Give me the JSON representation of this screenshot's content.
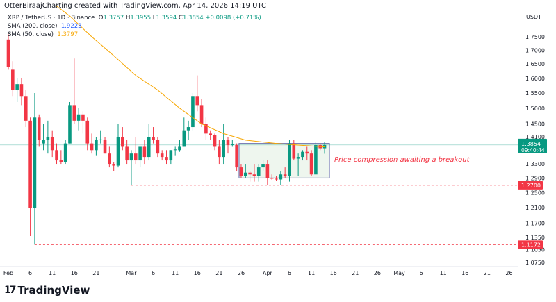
{
  "credit": "OtterBiraajCharting created with TradingView.com, Apr 14, 2026 14:19 UTC",
  "legend": {
    "symbol": "XRP / TetherUS · 1D · Binance",
    "o": "1.3757",
    "h": "1.3955",
    "l": "1.3594",
    "c": "1.3854",
    "change": "+0.0098 (+0.71%)",
    "sma200_label": "SMA (200, close)",
    "sma200_value": "1.9223",
    "sma50_label": "SMA (50, close)",
    "sma50_value": "1.3797"
  },
  "currency": "USDT",
  "logo": "TradingView",
  "annotation": "Price compression awaiting a breakout",
  "colors": {
    "up": "#089981",
    "down": "#f23645",
    "sma50": "#f7a600",
    "sma200": "#2962ff",
    "box_border": "#7b7fb5",
    "box_fill": "#eef6ee",
    "annotation": "#f23645"
  },
  "chart_data": {
    "type": "candlestick",
    "scale": "log",
    "ylim": [
      1.055,
      1.82
    ],
    "yticks": [
      "1.7500",
      "1.7000",
      "1.6500",
      "1.6000",
      "1.5500",
      "1.5000",
      "1.4500",
      "1.4100",
      "1.3300",
      "1.2900",
      "1.2500",
      "1.2100",
      "1.1700",
      "1.1350",
      "1.1050",
      "1.0750"
    ],
    "xticks": [
      [
        "2026-02-01",
        "Feb"
      ],
      [
        "2026-02-06",
        "6"
      ],
      [
        "2026-02-11",
        "11"
      ],
      [
        "2026-02-16",
        "16"
      ],
      [
        "2026-02-21",
        "21"
      ],
      [
        "2026-03-01",
        "Mar"
      ],
      [
        "2026-03-06",
        "6"
      ],
      [
        "2026-03-11",
        "11"
      ],
      [
        "2026-03-16",
        "16"
      ],
      [
        "2026-03-21",
        "21"
      ],
      [
        "2026-03-26",
        "26"
      ],
      [
        "2026-04-01",
        "Apr"
      ],
      [
        "2026-04-06",
        "6"
      ],
      [
        "2026-04-11",
        "11"
      ],
      [
        "2026-04-16",
        "16"
      ],
      [
        "2026-04-21",
        "21"
      ],
      [
        "2026-04-26",
        "26"
      ],
      [
        "2026-05-01",
        "May"
      ],
      [
        "2026-05-06",
        "6"
      ],
      [
        "2026-05-11",
        "11"
      ],
      [
        "2026-05-16",
        "16"
      ],
      [
        "2026-05-21",
        "21"
      ],
      [
        "2026-05-26",
        "26"
      ]
    ],
    "start_date": "2026-02-01",
    "ohlc": [
      [
        1.74,
        1.76,
        1.63,
        1.64
      ],
      [
        1.63,
        1.66,
        1.54,
        1.56
      ],
      [
        1.56,
        1.6,
        1.52,
        1.58
      ],
      [
        1.58,
        1.6,
        1.51,
        1.54
      ],
      [
        1.54,
        1.56,
        1.44,
        1.46
      ],
      [
        1.46,
        1.47,
        1.138,
        1.21
      ],
      [
        1.21,
        1.55,
        1.1172,
        1.47
      ],
      [
        1.47,
        1.48,
        1.38,
        1.4
      ],
      [
        1.39,
        1.45,
        1.37,
        1.4
      ],
      [
        1.4,
        1.46,
        1.36,
        1.41
      ],
      [
        1.41,
        1.43,
        1.35,
        1.37
      ],
      [
        1.37,
        1.39,
        1.33,
        1.34
      ],
      [
        1.34,
        1.37,
        1.33,
        1.335
      ],
      [
        1.335,
        1.4,
        1.33,
        1.39
      ],
      [
        1.39,
        1.52,
        1.39,
        1.51
      ],
      [
        1.51,
        1.67,
        1.45,
        1.46
      ],
      [
        1.46,
        1.5,
        1.43,
        1.48
      ],
      [
        1.48,
        1.49,
        1.42,
        1.46
      ],
      [
        1.46,
        1.47,
        1.37,
        1.39
      ],
      [
        1.39,
        1.42,
        1.36,
        1.37
      ],
      [
        1.37,
        1.41,
        1.355,
        1.4
      ],
      [
        1.4,
        1.43,
        1.39,
        1.402
      ],
      [
        1.4,
        1.41,
        1.36,
        1.36
      ],
      [
        1.36,
        1.38,
        1.32,
        1.33
      ],
      [
        1.33,
        1.335,
        1.31,
        1.325
      ],
      [
        1.325,
        1.45,
        1.32,
        1.41
      ],
      [
        1.41,
        1.44,
        1.37,
        1.38
      ],
      [
        1.38,
        1.4,
        1.33,
        1.34
      ],
      [
        1.34,
        1.37,
        1.27,
        1.36
      ],
      [
        1.36,
        1.41,
        1.33,
        1.34
      ],
      [
        1.34,
        1.38,
        1.32,
        1.38
      ],
      [
        1.38,
        1.4,
        1.33,
        1.35
      ],
      [
        1.35,
        1.45,
        1.34,
        1.41
      ],
      [
        1.41,
        1.44,
        1.39,
        1.4
      ],
      [
        1.4,
        1.41,
        1.35,
        1.36
      ],
      [
        1.36,
        1.37,
        1.34,
        1.35
      ],
      [
        1.35,
        1.37,
        1.33,
        1.34
      ],
      [
        1.34,
        1.37,
        1.33,
        1.37
      ],
      [
        1.37,
        1.38,
        1.355,
        1.372
      ],
      [
        1.37,
        1.4,
        1.365,
        1.38
      ],
      [
        1.38,
        1.47,
        1.38,
        1.43
      ],
      [
        1.43,
        1.46,
        1.4,
        1.44
      ],
      [
        1.44,
        1.55,
        1.43,
        1.54
      ],
      [
        1.54,
        1.61,
        1.49,
        1.51
      ],
      [
        1.51,
        1.53,
        1.44,
        1.45
      ],
      [
        1.45,
        1.47,
        1.4,
        1.42
      ],
      [
        1.42,
        1.43,
        1.4,
        1.415
      ],
      [
        1.415,
        1.42,
        1.37,
        1.38
      ],
      [
        1.38,
        1.4,
        1.33,
        1.35
      ],
      [
        1.35,
        1.45,
        1.33,
        1.4
      ],
      [
        1.4,
        1.41,
        1.36,
        1.385
      ],
      [
        1.385,
        1.4,
        1.38,
        1.387
      ],
      [
        1.385,
        1.39,
        1.31,
        1.32
      ],
      [
        1.32,
        1.33,
        1.29,
        1.295
      ],
      [
        1.295,
        1.33,
        1.29,
        1.305
      ],
      [
        1.305,
        1.31,
        1.28,
        1.3
      ],
      [
        1.3,
        1.33,
        1.28,
        1.295
      ],
      [
        1.295,
        1.33,
        1.28,
        1.32
      ],
      [
        1.32,
        1.34,
        1.31,
        1.33
      ],
      [
        1.33,
        1.34,
        1.27,
        1.29
      ],
      [
        1.29,
        1.3,
        1.285,
        1.288
      ],
      [
        1.288,
        1.295,
        1.283,
        1.286
      ],
      [
        1.286,
        1.31,
        1.27,
        1.3
      ],
      [
        1.3,
        1.32,
        1.29,
        1.295
      ],
      [
        1.295,
        1.4,
        1.28,
        1.39
      ],
      [
        1.39,
        1.4,
        1.34,
        1.345
      ],
      [
        1.345,
        1.36,
        1.295,
        1.35
      ],
      [
        1.35,
        1.37,
        1.34,
        1.365
      ],
      [
        1.365,
        1.38,
        1.34,
        1.36
      ],
      [
        1.36,
        1.37,
        1.295,
        1.3
      ],
      [
        1.3,
        1.395,
        1.3,
        1.385
      ],
      [
        1.385,
        1.39,
        1.37,
        1.3757
      ],
      [
        1.3757,
        1.3955,
        1.3594,
        1.3854
      ]
    ],
    "sma50": [
      [
        "2026-02-12",
        1.87
      ],
      [
        "2026-02-15",
        1.83
      ],
      [
        "2026-02-20",
        1.75
      ],
      [
        "2026-02-25",
        1.68
      ],
      [
        "2026-03-02",
        1.61
      ],
      [
        "2026-03-07",
        1.56
      ],
      [
        "2026-03-12",
        1.5
      ],
      [
        "2026-03-17",
        1.45
      ],
      [
        "2026-03-22",
        1.42
      ],
      [
        "2026-03-27",
        1.4
      ],
      [
        "2026-04-03",
        1.39
      ],
      [
        "2026-04-08",
        1.385
      ],
      [
        "2026-04-14",
        1.3797
      ]
    ],
    "last_price": {
      "value": "1.3854",
      "countdown": "09:40:44"
    },
    "levels": [
      {
        "value": "1.2700",
        "from": "2026-03-01"
      },
      {
        "value": "1.1172",
        "from": "2026-02-07"
      }
    ],
    "box": {
      "from": "2026-03-26",
      "to": "2026-04-14",
      "top": 1.39,
      "bottom": 1.29
    }
  }
}
